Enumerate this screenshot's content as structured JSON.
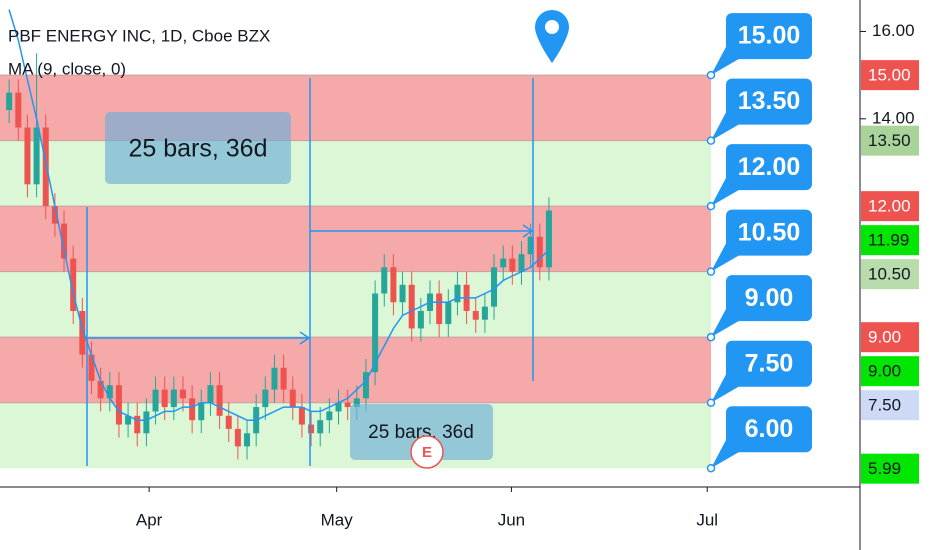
{
  "chart_data": {
    "type": "candlestick",
    "title": "PBF ENERGY INC, 1D, Cboe BZX",
    "indicator": "MA (9, close, 0)",
    "x": [
      0,
      1,
      2,
      3,
      4,
      5,
      6,
      7,
      8,
      9,
      10,
      11,
      12,
      13,
      14,
      15,
      16,
      17,
      18,
      19,
      20,
      21,
      22,
      23,
      24,
      25,
      26,
      27,
      28,
      29,
      30,
      31,
      32,
      33,
      34,
      35,
      36,
      37,
      38,
      39,
      40,
      41,
      42,
      43,
      44,
      45,
      46,
      47,
      48,
      49,
      50,
      51,
      52,
      53,
      54,
      55,
      56,
      57,
      58,
      59
    ],
    "open": [
      14.2,
      14.6,
      13.8,
      12.5,
      13.8,
      12.0,
      11.6,
      10.8,
      9.6,
      8.6,
      8.0,
      7.6,
      7.9,
      7.0,
      7.2,
      6.8,
      7.3,
      7.8,
      7.4,
      7.8,
      7.6,
      7.1,
      7.5,
      7.9,
      7.2,
      6.9,
      6.5,
      6.8,
      7.4,
      7.8,
      8.3,
      7.8,
      7.4,
      7.0,
      6.8,
      7.1,
      7.3,
      7.5,
      7.4,
      7.6,
      8.2,
      10.0,
      10.6,
      9.8,
      10.2,
      9.2,
      9.6,
      10.0,
      9.3,
      9.8,
      10.2,
      9.6,
      9.4,
      9.7,
      10.6,
      10.8,
      10.5,
      10.9,
      11.3,
      10.6
    ],
    "high": [
      14.9,
      14.9,
      14.1,
      15.5,
      14.1,
      12.3,
      11.9,
      11.1,
      9.9,
      8.9,
      8.3,
      8.2,
      8.2,
      7.5,
      7.5,
      7.6,
      8.1,
      8.1,
      8.1,
      8.1,
      7.9,
      7.8,
      8.2,
      8.2,
      7.5,
      7.2,
      7.1,
      7.7,
      8.1,
      8.6,
      8.6,
      8.1,
      7.7,
      7.3,
      7.4,
      7.6,
      7.8,
      7.8,
      7.9,
      8.5,
      10.3,
      10.9,
      10.9,
      10.5,
      10.5,
      9.9,
      10.3,
      10.3,
      10.1,
      10.5,
      10.5,
      9.9,
      10.0,
      10.9,
      11.1,
      11.1,
      11.2,
      11.6,
      11.6,
      12.2
    ],
    "low": [
      13.9,
      13.5,
      12.2,
      12.2,
      11.7,
      11.3,
      10.5,
      9.3,
      8.3,
      7.7,
      7.3,
      7.3,
      6.7,
      6.7,
      6.5,
      6.5,
      7.0,
      7.1,
      7.1,
      7.3,
      6.8,
      6.8,
      7.2,
      6.9,
      6.6,
      6.2,
      6.2,
      6.5,
      7.1,
      7.5,
      7.5,
      7.1,
      6.7,
      6.5,
      6.5,
      6.8,
      7.0,
      7.1,
      7.1,
      7.3,
      7.9,
      9.7,
      9.5,
      9.5,
      8.9,
      8.9,
      9.3,
      9.0,
      9.0,
      9.5,
      9.3,
      9.1,
      9.1,
      9.4,
      10.3,
      10.2,
      10.2,
      10.6,
      10.3,
      10.3
    ],
    "close": [
      14.6,
      13.8,
      12.5,
      13.8,
      12.0,
      11.6,
      10.8,
      9.6,
      8.6,
      8.0,
      7.6,
      7.9,
      7.0,
      7.2,
      6.8,
      7.3,
      7.8,
      7.4,
      7.8,
      7.6,
      7.1,
      7.5,
      7.9,
      7.2,
      6.9,
      6.5,
      6.8,
      7.4,
      7.8,
      8.3,
      7.8,
      7.4,
      7.0,
      6.8,
      7.1,
      7.3,
      7.5,
      7.4,
      7.6,
      8.2,
      10.0,
      10.6,
      9.8,
      10.2,
      9.2,
      9.6,
      10.0,
      9.3,
      9.8,
      10.2,
      9.6,
      9.4,
      9.7,
      10.6,
      10.8,
      10.5,
      10.9,
      11.3,
      10.6,
      11.9
    ],
    "up_color": "#26a69a",
    "down_color": "#ef5350",
    "ma": {
      "color": "#2196f3",
      "values": [
        16.5,
        15.8,
        14.9,
        14.0,
        13.0,
        12.0,
        11.0,
        10.0,
        9.2,
        8.6,
        8.0,
        7.6,
        7.3,
        7.2,
        7.1,
        7.1,
        7.2,
        7.3,
        7.3,
        7.4,
        7.4,
        7.5,
        7.5,
        7.4,
        7.3,
        7.2,
        7.1,
        7.1,
        7.2,
        7.3,
        7.4,
        7.4,
        7.4,
        7.3,
        7.3,
        7.4,
        7.5,
        7.6,
        7.8,
        8.0,
        8.4,
        8.8,
        9.2,
        9.5,
        9.6,
        9.7,
        9.8,
        9.8,
        9.8,
        9.9,
        9.9,
        9.9,
        10.0,
        10.1,
        10.3,
        10.4,
        10.5,
        10.6,
        10.8,
        11.0
      ]
    },
    "xlim": [
      -1,
      93
    ],
    "xticks": [
      {
        "value": 15.3,
        "label": "Apr"
      },
      {
        "value": 35.8,
        "label": "May"
      },
      {
        "value": 54.9,
        "label": "Jun"
      },
      {
        "value": 76.3,
        "label": "Jul"
      }
    ],
    "ylim": [
      5.57,
      16.72
    ],
    "yticks": [
      {
        "value": 16,
        "label": "16.00"
      },
      {
        "value": 14,
        "label": "14.00"
      }
    ],
    "zones": [
      {
        "from": 15,
        "to": 13.5,
        "color": "#f5a9a9"
      },
      {
        "from": 13.5,
        "to": 12,
        "color": "#dcf7d6"
      },
      {
        "from": 12,
        "to": 10.5,
        "color": "#f5a9a9"
      },
      {
        "from": 10.5,
        "to": 9,
        "color": "#dcf7d6"
      },
      {
        "from": 9,
        "to": 7.5,
        "color": "#f5a9a9"
      },
      {
        "from": 7.5,
        "to": 6,
        "color": "#dcf7d6"
      }
    ],
    "level_callouts": [
      {
        "value": 15,
        "label": "15.00"
      },
      {
        "value": 13.5,
        "label": "13.50"
      },
      {
        "value": 12,
        "label": "12.00"
      },
      {
        "value": 10.5,
        "label": "10.50"
      },
      {
        "value": 9,
        "label": "9.00"
      },
      {
        "value": 7.5,
        "label": "7.50"
      },
      {
        "value": 6,
        "label": "6.00"
      }
    ],
    "callout_color": "#2196f3",
    "price_tags": [
      {
        "value": 15,
        "label": "15.00",
        "color": "#ef5350",
        "text_color": "#ffffff"
      },
      {
        "value": 13.5,
        "label": "13.50",
        "color": "#a8d49a",
        "text_color": "#131722"
      },
      {
        "value": 12,
        "label": "12.00",
        "color": "#ef5350",
        "text_color": "#ffffff"
      },
      {
        "value": 11.99,
        "label": "11.99",
        "color": "#00e600",
        "text_color": "#131722"
      },
      {
        "value": 10.5,
        "label": "10.50",
        "color": "#b8dcab",
        "text_color": "#131722"
      },
      {
        "value": 9,
        "label": "9.00",
        "color": "#ef5350",
        "text_color": "#ffffff"
      },
      {
        "value": 9,
        "label": "9.00",
        "color": "#00e600",
        "text_color": "#131722"
      },
      {
        "value": 7.5,
        "label": "7.50",
        "color": "#cdd9f5",
        "text_color": "#131722"
      },
      {
        "value": 5.99,
        "label": "5.99",
        "color": "#00e600",
        "text_color": "#131722"
      }
    ],
    "measures": [
      "25 bars, 36d",
      "25 bars, 36d"
    ],
    "earnings": "E"
  }
}
